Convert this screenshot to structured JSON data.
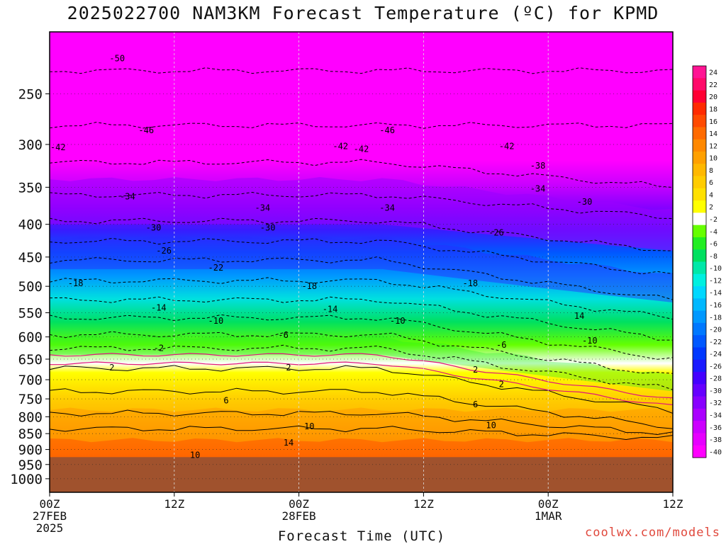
{
  "title": "2025022700 NAM3KM Forecast Temperature (ºC) for KPMD",
  "xlabel": "Forecast Time (UTC)",
  "credit": "coolwx.com/models",
  "colors": {
    "ground": "#a0522d",
    "freezing_line": "#e0157a"
  },
  "chart_data": {
    "type": "heatmap",
    "title": "2025022700 NAM3KM Forecast Temperature (ºC) for KPMD",
    "xlabel": "Forecast Time (UTC)",
    "ylabel": "",
    "x_range_hours": [
      0,
      60
    ],
    "y_scale": "log-pressure",
    "y_range": [
      1050,
      200
    ],
    "y_ticks": [
      250,
      300,
      350,
      400,
      450,
      500,
      550,
      600,
      650,
      700,
      750,
      800,
      850,
      900,
      950,
      1000
    ],
    "x_ticks": [
      {
        "hour": 0,
        "labels": [
          "00Z",
          "27FEB",
          "2025"
        ]
      },
      {
        "hour": 12,
        "labels": [
          "12Z"
        ]
      },
      {
        "hour": 24,
        "labels": [
          "00Z",
          "28FEB"
        ]
      },
      {
        "hour": 36,
        "labels": [
          "12Z"
        ]
      },
      {
        "hour": 48,
        "labels": [
          "00Z",
          "1MAR"
        ]
      },
      {
        "hour": 60,
        "labels": [
          "12Z"
        ]
      }
    ],
    "ground_level_hpa": 925,
    "legend": {
      "position": "right",
      "labels": [
        "24",
        "22",
        "20",
        "18",
        "16",
        "14",
        "12",
        "10",
        "8",
        "6",
        "4",
        "2",
        "-2",
        "-4",
        "-6",
        "-8",
        "-10",
        "-12",
        "-14",
        "-16",
        "-18",
        "-20",
        "-22",
        "-24",
        "-26",
        "-28",
        "-30",
        "-32",
        "-34",
        "-36",
        "-38",
        "-40"
      ],
      "colors": [
        "#ff1493",
        "#ff0a6a",
        "#ff0033",
        "#ff2a00",
        "#ff4a00",
        "#ff6a00",
        "#ff8800",
        "#ffa000",
        "#ffb800",
        "#ffcc00",
        "#ffe000",
        "#ffff00",
        "#ffffff",
        "#66ff00",
        "#22ee22",
        "#00e060",
        "#00e8a8",
        "#00f0e0",
        "#00d8ff",
        "#00b8ff",
        "#0098ff",
        "#0078ff",
        "#0058ff",
        "#0038ff",
        "#1a1aff",
        "#4400ff",
        "#6600ff",
        "#8800ff",
        "#aa00ff",
        "#cc00ff",
        "#e600ff",
        "#ff00ff"
      ]
    },
    "contour_labels": [
      {
        "t": 6.5,
        "p": 220,
        "label": "-50"
      },
      {
        "t": 0.8,
        "p": 303,
        "label": "-42"
      },
      {
        "t": 7.5,
        "p": 362,
        "label": "-34"
      },
      {
        "t": 9.3,
        "p": 285,
        "label": "-46"
      },
      {
        "t": 32.5,
        "p": 285,
        "label": "-46"
      },
      {
        "t": 30,
        "p": 305,
        "label": "-42"
      },
      {
        "t": 28,
        "p": 302,
        "label": "-42"
      },
      {
        "t": 44,
        "p": 302,
        "label": "-42"
      },
      {
        "t": 47,
        "p": 324,
        "label": "-38"
      },
      {
        "t": 47,
        "p": 352,
        "label": "-34"
      },
      {
        "t": 51.5,
        "p": 369,
        "label": "-30"
      },
      {
        "t": 20.5,
        "p": 377,
        "label": "-34"
      },
      {
        "t": 32.5,
        "p": 377,
        "label": "-34"
      },
      {
        "t": 10,
        "p": 405,
        "label": "-30"
      },
      {
        "t": 21,
        "p": 405,
        "label": "-30"
      },
      {
        "t": 43,
        "p": 412,
        "label": "-26"
      },
      {
        "t": 11,
        "p": 440,
        "label": "-26"
      },
      {
        "t": 16,
        "p": 468,
        "label": "-22"
      },
      {
        "t": 2.5,
        "p": 495,
        "label": "-18"
      },
      {
        "t": 25,
        "p": 500,
        "label": "-18"
      },
      {
        "t": 40.5,
        "p": 495,
        "label": "-18"
      },
      {
        "t": 10.5,
        "p": 540,
        "label": "-14"
      },
      {
        "t": 27,
        "p": 543,
        "label": "-14"
      },
      {
        "t": 51,
        "p": 556,
        "label": "14"
      },
      {
        "t": 16,
        "p": 566,
        "label": "-10"
      },
      {
        "t": 33.5,
        "p": 566,
        "label": "-10"
      },
      {
        "t": 52,
        "p": 608,
        "label": "-10"
      },
      {
        "t": 22.5,
        "p": 596,
        "label": "-6"
      },
      {
        "t": 43.5,
        "p": 618,
        "label": "-6"
      },
      {
        "t": 10.5,
        "p": 625,
        "label": "-2"
      },
      {
        "t": 6,
        "p": 670,
        "label": "2"
      },
      {
        "t": 23,
        "p": 670,
        "label": "2"
      },
      {
        "t": 41,
        "p": 675,
        "label": "2"
      },
      {
        "t": 43.5,
        "p": 712,
        "label": "2"
      },
      {
        "t": 17,
        "p": 755,
        "label": "6"
      },
      {
        "t": 41,
        "p": 765,
        "label": "6"
      },
      {
        "t": 25,
        "p": 828,
        "label": "10"
      },
      {
        "t": 42.5,
        "p": 825,
        "label": "10"
      },
      {
        "t": 14,
        "p": 918,
        "label": "10"
      },
      {
        "t": 23,
        "p": 878,
        "label": "14"
      }
    ]
  }
}
